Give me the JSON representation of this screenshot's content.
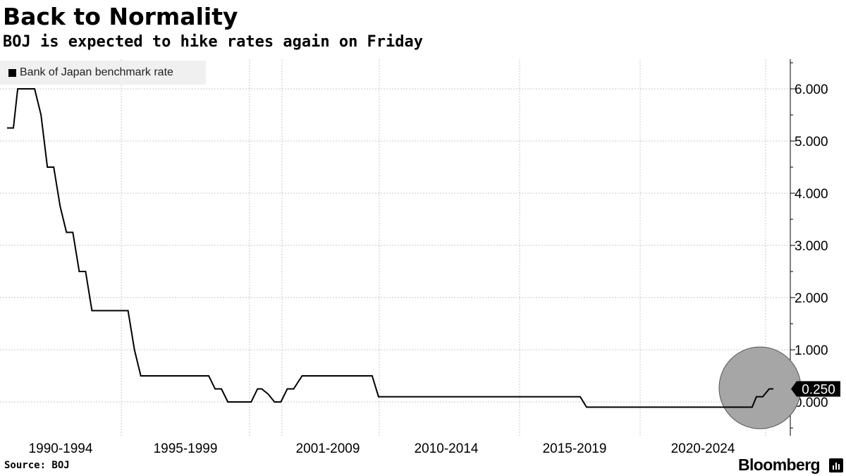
{
  "chart_data": {
    "type": "line",
    "title": "Back to Normality",
    "subtitle": "BOJ is expected to hike rates again on Friday",
    "legend": [
      "Bank of Japan benchmark rate"
    ],
    "legend_position": "top-left",
    "x_tick_labels": [
      "1990-1994",
      "1995-1999",
      "2001-2009",
      "2010-2014",
      "2015-2019",
      "2020-2024"
    ],
    "y_tick_labels": [
      "6.000",
      "5.000",
      "4.000",
      "3.000",
      "2.000",
      "1.000",
      "0.000"
    ],
    "ylim": [
      -0.5,
      6.5
    ],
    "xlim": [
      1989.0,
      2025.1
    ],
    "grid": true,
    "last_value_label": "0.250",
    "highlight": "circle around latest values",
    "series": [
      {
        "name": "Bank of Japan benchmark rate",
        "points": [
          [
            1989.0,
            5.25
          ],
          [
            1989.3,
            5.25
          ],
          [
            1989.5,
            6.0
          ],
          [
            1990.3,
            6.0
          ],
          [
            1990.6,
            5.5
          ],
          [
            1990.9,
            4.5
          ],
          [
            1991.2,
            4.5
          ],
          [
            1991.5,
            3.75
          ],
          [
            1991.8,
            3.25
          ],
          [
            1992.1,
            3.25
          ],
          [
            1992.4,
            2.5
          ],
          [
            1992.7,
            2.5
          ],
          [
            1993.0,
            1.75
          ],
          [
            1993.3,
            1.75
          ],
          [
            1994.7,
            1.75
          ],
          [
            1995.0,
            1.0
          ],
          [
            1995.3,
            0.5
          ],
          [
            1998.5,
            0.5
          ],
          [
            1998.8,
            0.25
          ],
          [
            1999.1,
            0.25
          ],
          [
            1999.4,
            0.0
          ],
          [
            2000.5,
            0.0
          ],
          [
            2000.8,
            0.25
          ],
          [
            2001.0,
            0.25
          ],
          [
            2001.3,
            0.15
          ],
          [
            2001.6,
            0.0
          ],
          [
            2001.9,
            0.0
          ],
          [
            2002.2,
            0.25
          ],
          [
            2002.5,
            0.25
          ],
          [
            2002.9,
            0.5
          ],
          [
            2006.2,
            0.5
          ],
          [
            2006.5,
            0.1
          ],
          [
            2016.0,
            0.1
          ],
          [
            2016.3,
            -0.1
          ],
          [
            2024.1,
            -0.1
          ],
          [
            2024.3,
            0.1
          ],
          [
            2024.6,
            0.1
          ],
          [
            2024.9,
            0.25
          ],
          [
            2025.1,
            0.25
          ]
        ]
      }
    ]
  },
  "footer": {
    "source": "Source: BOJ",
    "brand": "Bloomberg"
  }
}
